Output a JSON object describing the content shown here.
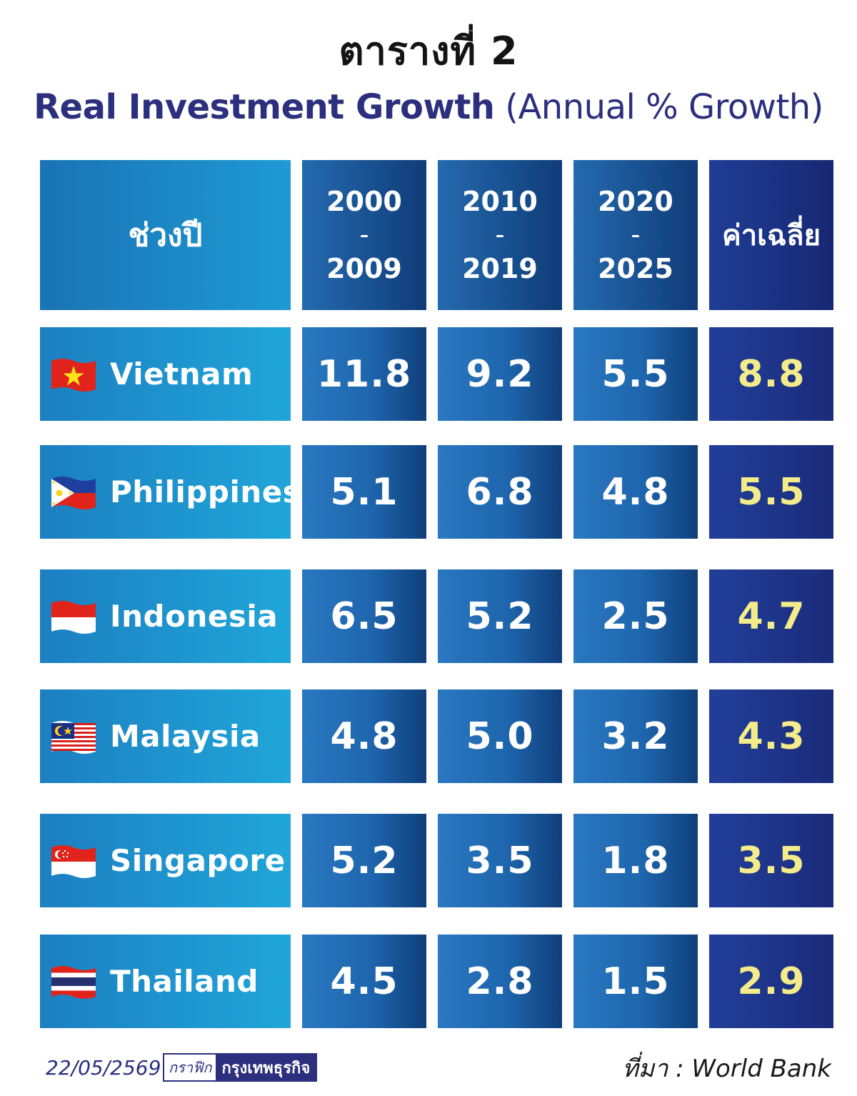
{
  "title": "ตารางที่ 2",
  "subtitle": {
    "bold": "Real Investment Growth",
    "normal": "(Annual % Growth)"
  },
  "header": {
    "label": "ช่วงปี",
    "periods": [
      {
        "from": "2000",
        "dash": "–",
        "to": "2009"
      },
      {
        "from": "2010",
        "dash": "–",
        "to": "2019"
      },
      {
        "from": "2020",
        "dash": "–",
        "to": "2025"
      }
    ],
    "average": "ค่าเฉลี่ย"
  },
  "chart_data": {
    "type": "table",
    "columns": [
      "2000 – 2009",
      "2010 – 2019",
      "2020 – 2025",
      "ค่าเฉลี่ย"
    ],
    "rows": [
      {
        "country": "Vietnam",
        "flag": "vietnam-flag-icon",
        "values": [
          "11.8",
          "9.2",
          "5.5"
        ],
        "average": "8.8"
      },
      {
        "country": "Philippines",
        "flag": "philippines-flag-icon",
        "values": [
          "5.1",
          "6.8",
          "4.8"
        ],
        "average": "5.5"
      },
      {
        "country": "Indonesia",
        "flag": "indonesia-flag-icon",
        "values": [
          "6.5",
          "5.2",
          "2.5"
        ],
        "average": "4.7"
      },
      {
        "country": "Malaysia",
        "flag": "malaysia-flag-icon",
        "values": [
          "4.8",
          "5.0",
          "3.2"
        ],
        "average": "4.3"
      },
      {
        "country": "Singapore",
        "flag": "singapore-flag-icon",
        "values": [
          "5.2",
          "3.5",
          "1.8"
        ],
        "average": "3.5"
      },
      {
        "country": "Thailand",
        "flag": "thailand-flag-icon",
        "values": [
          "4.5",
          "2.8",
          "1.5"
        ],
        "average": "2.9"
      }
    ]
  },
  "footer": {
    "date": "22/05/2569",
    "brand_left": "กราฟิก",
    "brand_right": "กรุงเทพธุรกิจ",
    "source": "ที่มา : World Bank"
  },
  "colors": {
    "title_text": "#141414",
    "subtitle_text": "#2b2f7e",
    "average_value_text": "#f4ec8a",
    "label_cell": "#20a6d9",
    "value_cell": "#1e66ae",
    "average_cell": "#1b2b7a"
  }
}
